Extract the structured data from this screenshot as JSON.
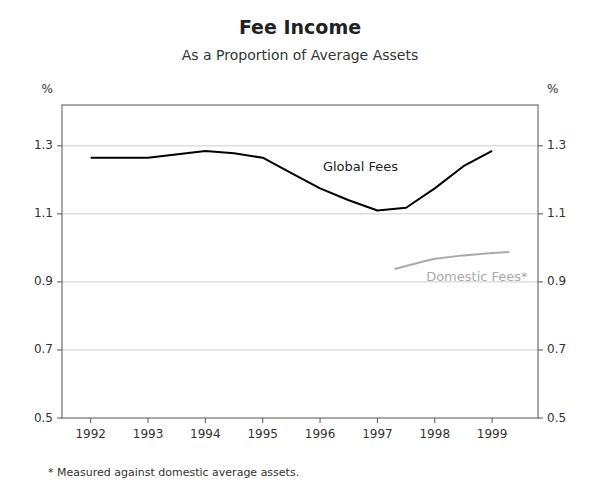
{
  "chart_data": {
    "type": "line",
    "title": "Fee Income",
    "subtitle": "As a Proportion of Average Assets",
    "footnote": "* Measured against domestic average assets.",
    "ylabel": "%",
    "y2label": "%",
    "xlim": [
      1991.5,
      1999.8
    ],
    "xticks": [
      1992,
      1993,
      1994,
      1995,
      1996,
      1997,
      1998,
      1999
    ],
    "ylim": [
      0.5,
      1.42
    ],
    "yticks": [
      0.5,
      0.7,
      0.9,
      1.1,
      1.3
    ],
    "y2lim": [
      0.5,
      1.42
    ],
    "y2ticks": [
      0.5,
      0.7,
      0.9,
      1.1,
      1.3
    ],
    "grid": true,
    "series": [
      {
        "x": [
          1992,
          1993,
          1994,
          1994.5,
          1995,
          1995.5,
          1996,
          1996.5,
          1997,
          1997.5,
          1998,
          1998.5,
          1999
        ],
        "values": [
          1.265,
          1.265,
          1.285,
          1.278,
          1.265,
          1.22,
          1.175,
          1.14,
          1.11,
          1.118,
          1.175,
          1.24,
          1.285
        ],
        "color": "#000000"
      },
      {
        "x": [
          1997.3,
          1997.8,
          1998,
          1998.5,
          1999,
          1999.3
        ],
        "values": [
          0.938,
          0.96,
          0.968,
          0.978,
          0.985,
          0.988
        ],
        "color": "#aaaaaa"
      }
    ],
    "annotations": [
      {
        "text": "Global Fees",
        "x": 1996.05,
        "y": 1.235,
        "color": "#222222"
      },
      {
        "text": "Domestic Fees*",
        "x": 1997.85,
        "y": 0.912,
        "color": "#aaaaaa"
      }
    ]
  }
}
